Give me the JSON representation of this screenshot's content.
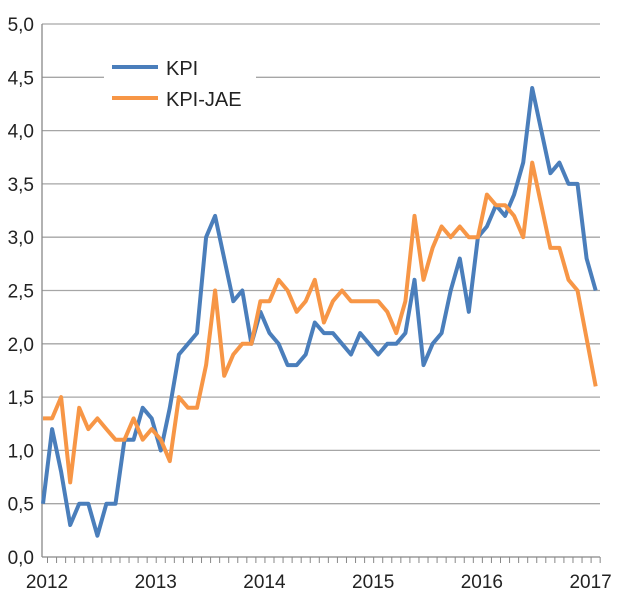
{
  "chart_data": {
    "type": "line",
    "title": "",
    "xlabel": "",
    "ylabel": "",
    "ylim": [
      0,
      5
    ],
    "yticks": [
      "0,0",
      "0,5",
      "1,0",
      "1,5",
      "2,0",
      "2,5",
      "3,0",
      "3,5",
      "4,0",
      "4,5",
      "5,0"
    ],
    "xtick_labels": [
      "2012",
      "2013",
      "2014",
      "2015",
      "2016",
      "2017"
    ],
    "x_frequency": "monthly",
    "x_start": "2012-01",
    "grid": "horizontal",
    "legend_position": "top-left",
    "series": [
      {
        "name": "KPI",
        "color": "#4a7ebb",
        "values": [
          0.5,
          1.2,
          0.8,
          0.3,
          0.5,
          0.5,
          0.2,
          0.5,
          0.5,
          1.1,
          1.1,
          1.4,
          1.3,
          1.0,
          1.4,
          1.9,
          2.0,
          2.1,
          3.0,
          3.2,
          2.8,
          2.4,
          2.5,
          2.0,
          2.3,
          2.1,
          2.0,
          1.8,
          1.8,
          1.9,
          2.2,
          2.1,
          2.1,
          2.0,
          1.9,
          2.1,
          2.0,
          1.9,
          2.0,
          2.0,
          2.1,
          2.6,
          1.8,
          2.0,
          2.1,
          2.5,
          2.8,
          2.3,
          3.0,
          3.1,
          3.3,
          3.2,
          3.4,
          3.7,
          4.4,
          4.0,
          3.6,
          3.7,
          3.5,
          3.5,
          2.8,
          2.5
        ]
      },
      {
        "name": "KPI-JAE",
        "color": "#f79646",
        "values": [
          1.3,
          1.3,
          1.5,
          0.7,
          1.4,
          1.2,
          1.3,
          1.2,
          1.1,
          1.1,
          1.3,
          1.1,
          1.2,
          1.1,
          0.9,
          1.5,
          1.4,
          1.4,
          1.8,
          2.5,
          1.7,
          1.9,
          2.0,
          2.0,
          2.4,
          2.4,
          2.6,
          2.5,
          2.3,
          2.4,
          2.6,
          2.2,
          2.4,
          2.5,
          2.4,
          2.4,
          2.4,
          2.4,
          2.3,
          2.1,
          2.4,
          3.2,
          2.6,
          2.9,
          3.1,
          3.0,
          3.1,
          3.0,
          3.0,
          3.4,
          3.3,
          3.3,
          3.2,
          3.0,
          3.7,
          3.3,
          2.9,
          2.9,
          2.6,
          2.5,
          2.05,
          1.6
        ]
      }
    ]
  }
}
